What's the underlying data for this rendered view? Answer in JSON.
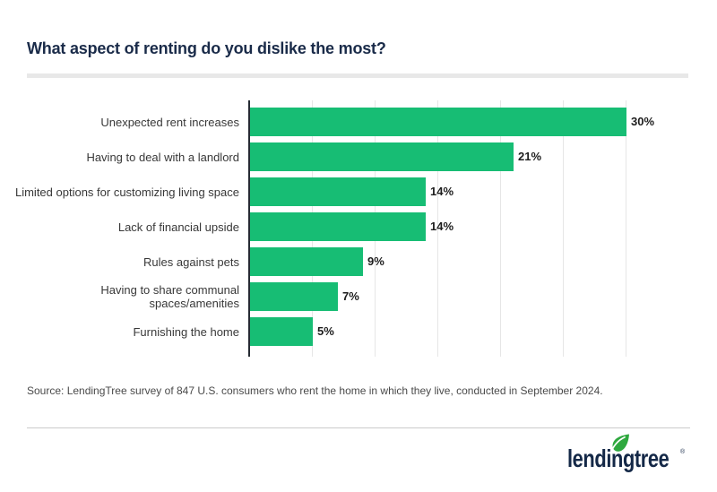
{
  "header": {
    "title": "What aspect of renting do you dislike the most?"
  },
  "chart_data": {
    "type": "bar",
    "orientation": "horizontal",
    "title": "What aspect of renting do you dislike the most?",
    "categories": [
      "Unexpected rent increases",
      "Having to deal with a landlord",
      "Limited options for customizing living space",
      "Lack of financial upside",
      "Rules against pets",
      "Having to share communal spaces/amenities",
      "Furnishing the home"
    ],
    "values": [
      30,
      21,
      14,
      14,
      9,
      7,
      5
    ],
    "value_labels": [
      "30%",
      "21%",
      "14%",
      "14%",
      "9%",
      "7%",
      "5%"
    ],
    "unit": "percent",
    "xlim": [
      0,
      30
    ],
    "gridline_step": 5,
    "grid": true,
    "legend": false,
    "bar_color": "#17BD74",
    "axis_color": "#252B33",
    "gridline_color": "#E6E6E6"
  },
  "footer": {
    "source": "Source: LendingTree survey of 847 U.S. consumers who rent the home in which they live, conducted in September 2024.",
    "logo_text": "lendingtree",
    "logo_reg": "®"
  },
  "colors": {
    "title": "#1A2B49",
    "logo_navy": "#142847",
    "leaf_green": "#2EA83E"
  }
}
